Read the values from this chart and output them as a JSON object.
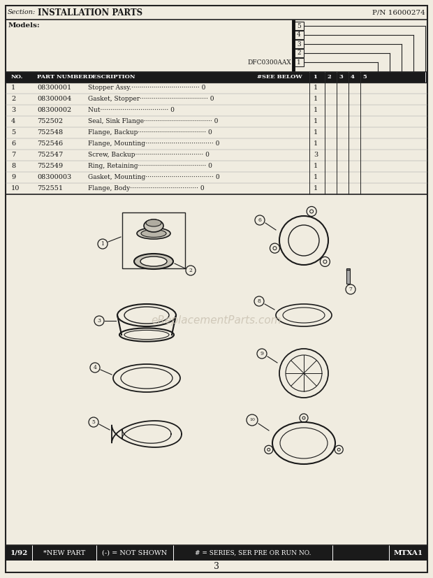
{
  "title_section": "Section:",
  "title_main": "INSTALLATION PARTS",
  "title_pn": "P/N 16000274",
  "models_label": "Models:",
  "model_name": "DFC0300AAX",
  "series_numbers": [
    "5",
    "4",
    "3",
    "2",
    "1"
  ],
  "table_headers": [
    "NO.",
    "PART NUMBER",
    "DESCRIPTION",
    "#SEE BELOW",
    "1",
    "2",
    "3",
    "4",
    "5"
  ],
  "parts": [
    {
      "no": "1",
      "part": "08300001",
      "desc": "Stopper Assy.",
      "see": "0",
      "qty1": "1"
    },
    {
      "no": "2",
      "part": "08300004",
      "desc": "Gasket, Stopper",
      "see": "0",
      "qty1": "1"
    },
    {
      "no": "3",
      "part": "08300002",
      "desc": "Nut",
      "see": "0",
      "qty1": "1"
    },
    {
      "no": "4",
      "part": "752502",
      "desc": "Seal, Sink Flange",
      "see": "0",
      "qty1": "1"
    },
    {
      "no": "5",
      "part": "752548",
      "desc": "Flange, Backup",
      "see": "0",
      "qty1": "1"
    },
    {
      "no": "6",
      "part": "752546",
      "desc": "Flange, Mounting",
      "see": "0",
      "qty1": "1"
    },
    {
      "no": "7",
      "part": "752547",
      "desc": "Screw, Backup",
      "see": "0",
      "qty1": "3"
    },
    {
      "no": "8",
      "part": "752549",
      "desc": "Ring, Retaining",
      "see": "0",
      "qty1": "1"
    },
    {
      "no": "9",
      "part": "08300003",
      "desc": "Gasket, Mounting",
      "see": "0",
      "qty1": "1"
    },
    {
      "no": "10",
      "part": "752551",
      "desc": "Flange, Body",
      "see": "0",
      "qty1": "1"
    }
  ],
  "footer_left": "1/92",
  "footer_mid1": "*NEW PART",
  "footer_mid2": "(-) = NOT SHOWN",
  "footer_mid3": "# = SERIES, SER PRE OR RUN NO.",
  "footer_right": "MTXA1",
  "page_number": "3",
  "watermark": "eReplacementParts.com",
  "bg_color": "#f0ece0",
  "border_color": "#222222",
  "text_color": "#1a1a1a",
  "header_bg": "#1a1a1a",
  "header_text": "#ffffff"
}
